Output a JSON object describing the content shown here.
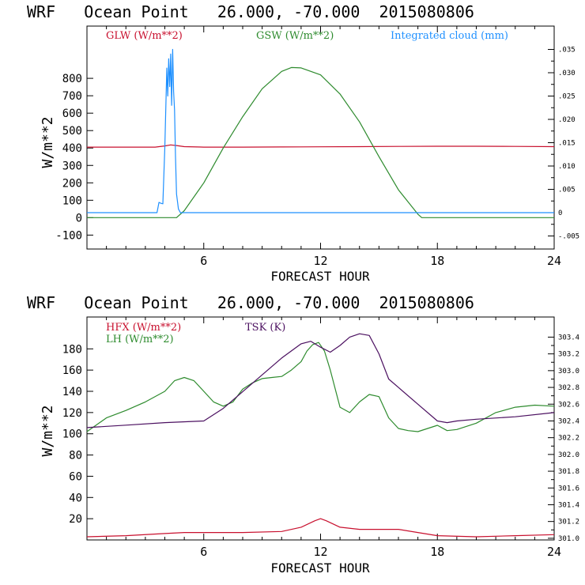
{
  "colors": {
    "red": "#c8102e",
    "green": "#2e8b2e",
    "blue": "#1e90ff",
    "purple": "#4b1060",
    "frame": "#000000"
  },
  "chart_data": [
    {
      "type": "line",
      "title": "WRF   Ocean Point   26.000, -70.000  2015080806",
      "xlabel": "FORECAST HOUR",
      "ylabel": "W/m**2",
      "xlim": [
        0,
        24
      ],
      "ylim": [
        -180,
        1100
      ],
      "y2lim": [
        -0.0078,
        0.04
      ],
      "grid": false,
      "legend_placement": "top",
      "x_ticks": [
        6,
        12,
        18,
        24
      ],
      "y_ticks": [
        -100,
        0,
        100,
        200,
        300,
        400,
        500,
        600,
        700,
        800
      ],
      "y2_ticks": [
        ".035",
        ".030",
        ".025",
        ".020",
        ".015",
        ".010",
        ".005",
        "0",
        "-.005"
      ],
      "series": [
        {
          "name": "GLW (W/m**2)",
          "axis": "left",
          "x": [
            0,
            3.5,
            4,
            4.3,
            4.6,
            5,
            6,
            8,
            10,
            12,
            14,
            16,
            18,
            20,
            22,
            24
          ],
          "y": [
            405,
            405,
            412,
            418,
            414,
            408,
            405,
            405,
            406,
            407,
            408,
            409,
            410,
            410,
            409,
            408
          ]
        },
        {
          "name": "GSW (W/m**2)",
          "axis": "left",
          "x": [
            0,
            4.6,
            5.0,
            6,
            7,
            8,
            9,
            10,
            10.5,
            11,
            12,
            13,
            14,
            15,
            16,
            17,
            17.2,
            18,
            24
          ],
          "y": [
            0,
            0,
            40,
            200,
            400,
            580,
            740,
            840,
            862,
            860,
            820,
            710,
            550,
            350,
            160,
            20,
            0,
            0,
            0
          ]
        },
        {
          "name": "Integrated cloud (mm)",
          "axis": "right",
          "x": [
            0,
            3.6,
            3.7,
            3.8,
            3.9,
            4.0,
            4.1,
            4.15,
            4.2,
            4.25,
            4.3,
            4.35,
            4.4,
            4.45,
            4.5,
            4.55,
            4.6,
            4.7,
            4.8,
            5,
            24
          ],
          "y": [
            0,
            0,
            0.0022,
            0.002,
            0.0019,
            0.014,
            0.031,
            0.025,
            0.033,
            0.027,
            0.034,
            0.023,
            0.035,
            0.026,
            0.022,
            0.012,
            0.004,
            0.0008,
            0,
            0,
            0
          ]
        }
      ]
    },
    {
      "type": "line",
      "title": "WRF   Ocean Point   26.000, -70.000  2015080806",
      "xlabel": "FORECAST HOUR",
      "ylabel": "W/m**2",
      "xlim": [
        0,
        24
      ],
      "ylim": [
        0,
        210
      ],
      "y2lim": [
        300.98,
        303.64
      ],
      "grid": false,
      "legend_placement": "top-left",
      "x_ticks": [
        6,
        12,
        18,
        24
      ],
      "y_ticks": [
        20,
        40,
        60,
        80,
        100,
        120,
        140,
        160,
        180
      ],
      "y2_ticks": [
        "303.4",
        "303.2",
        "303.0",
        "302.8",
        "302.6",
        "302.4",
        "302.2",
        "302.0",
        "301.8",
        "301.6",
        "301.4",
        "301.2",
        "301.0"
      ],
      "series": [
        {
          "name": "HFX (W/m**2)",
          "axis": "left",
          "x": [
            0,
            2,
            4,
            5,
            6,
            8,
            10,
            11,
            11.7,
            12,
            12.3,
            13,
            14,
            16,
            17,
            18,
            20,
            22,
            24
          ],
          "y": [
            3,
            4,
            6,
            7,
            7,
            7,
            8,
            12,
            18,
            20,
            18,
            12,
            10,
            10,
            7,
            4,
            3,
            4,
            5
          ]
        },
        {
          "name": "LH (W/m**2)",
          "axis": "left",
          "x": [
            0,
            1,
            2,
            3,
            4,
            4.5,
            5,
            5.5,
            6,
            6.5,
            7,
            7.5,
            8,
            8.5,
            9,
            9.5,
            10,
            10.5,
            11,
            11.3,
            11.6,
            11.9,
            12.2,
            12.5,
            13,
            13.5,
            14,
            14.5,
            15,
            15.5,
            16,
            16.5,
            17,
            18,
            18.5,
            19,
            20,
            21,
            22,
            23,
            24
          ],
          "y": [
            102,
            115,
            122,
            130,
            140,
            150,
            153,
            150,
            140,
            130,
            126,
            130,
            142,
            148,
            152,
            153,
            154,
            160,
            168,
            178,
            184,
            186,
            178,
            160,
            125,
            120,
            130,
            137,
            135,
            115,
            105,
            103,
            102,
            108,
            103,
            104,
            110,
            120,
            125,
            127,
            126
          ]
        },
        {
          "name": "TSK (K)",
          "axis": "right",
          "x": [
            0,
            2,
            4,
            6,
            7,
            8,
            9,
            10,
            11,
            11.5,
            12,
            12.5,
            13,
            13.5,
            14,
            14.5,
            15,
            15.5,
            16,
            17,
            18,
            18.5,
            19,
            20,
            22,
            24
          ],
          "y": [
            302.32,
            302.35,
            302.38,
            302.4,
            302.55,
            302.75,
            302.95,
            303.15,
            303.32,
            303.35,
            303.28,
            303.22,
            303.3,
            303.4,
            303.44,
            303.42,
            303.2,
            302.9,
            302.8,
            302.6,
            302.4,
            302.38,
            302.4,
            302.42,
            302.45,
            302.5
          ]
        }
      ]
    }
  ]
}
